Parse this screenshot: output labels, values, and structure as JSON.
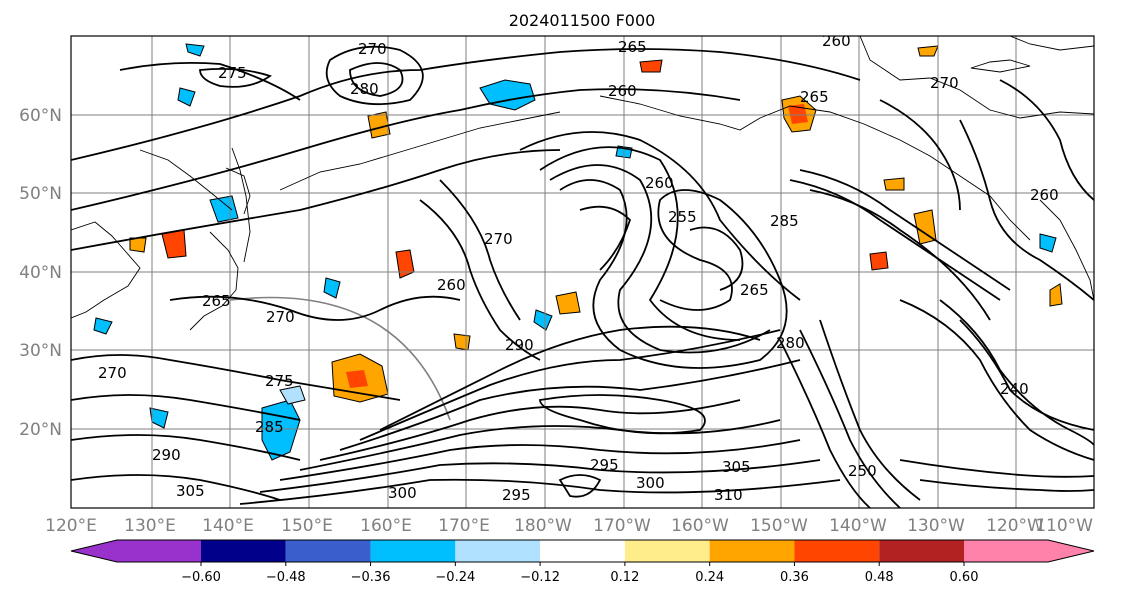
{
  "title": "2024011500 F000",
  "lat_labels": [
    "60°N",
    "50°N",
    "40°N",
    "30°N",
    "20°N"
  ],
  "lon_labels": [
    "120°E",
    "130°E",
    "140°E",
    "150°E",
    "160°E",
    "170°E",
    "180°W",
    "170°W",
    "160°W",
    "150°W",
    "140°W",
    "130°W",
    "120°W",
    "110°W"
  ],
  "colorbar": {
    "ticks": [
      "−0.60",
      "−0.48",
      "−0.36",
      "−0.24",
      "−0.12",
      "0.12",
      "0.24",
      "0.36",
      "0.48",
      "0.60"
    ],
    "colors": [
      "#9932cc",
      "#00008b",
      "#3a5fcd",
      "#00bfff",
      "#b0e2ff",
      "#ffffff",
      "#ffec8b",
      "#ffa500",
      "#ff4500",
      "#b22222",
      "#ff82ab"
    ]
  },
  "contour_labels": [
    "270",
    "265",
    "260",
    "275",
    "280",
    "270",
    "265",
    "260",
    "255",
    "260",
    "265",
    "270",
    "260",
    "265",
    "270",
    "275",
    "285",
    "290",
    "305",
    "295",
    "300",
    "310",
    "250",
    "270",
    "260",
    "240",
    "285",
    "290",
    "295",
    "300",
    "305",
    "280"
  ]
}
